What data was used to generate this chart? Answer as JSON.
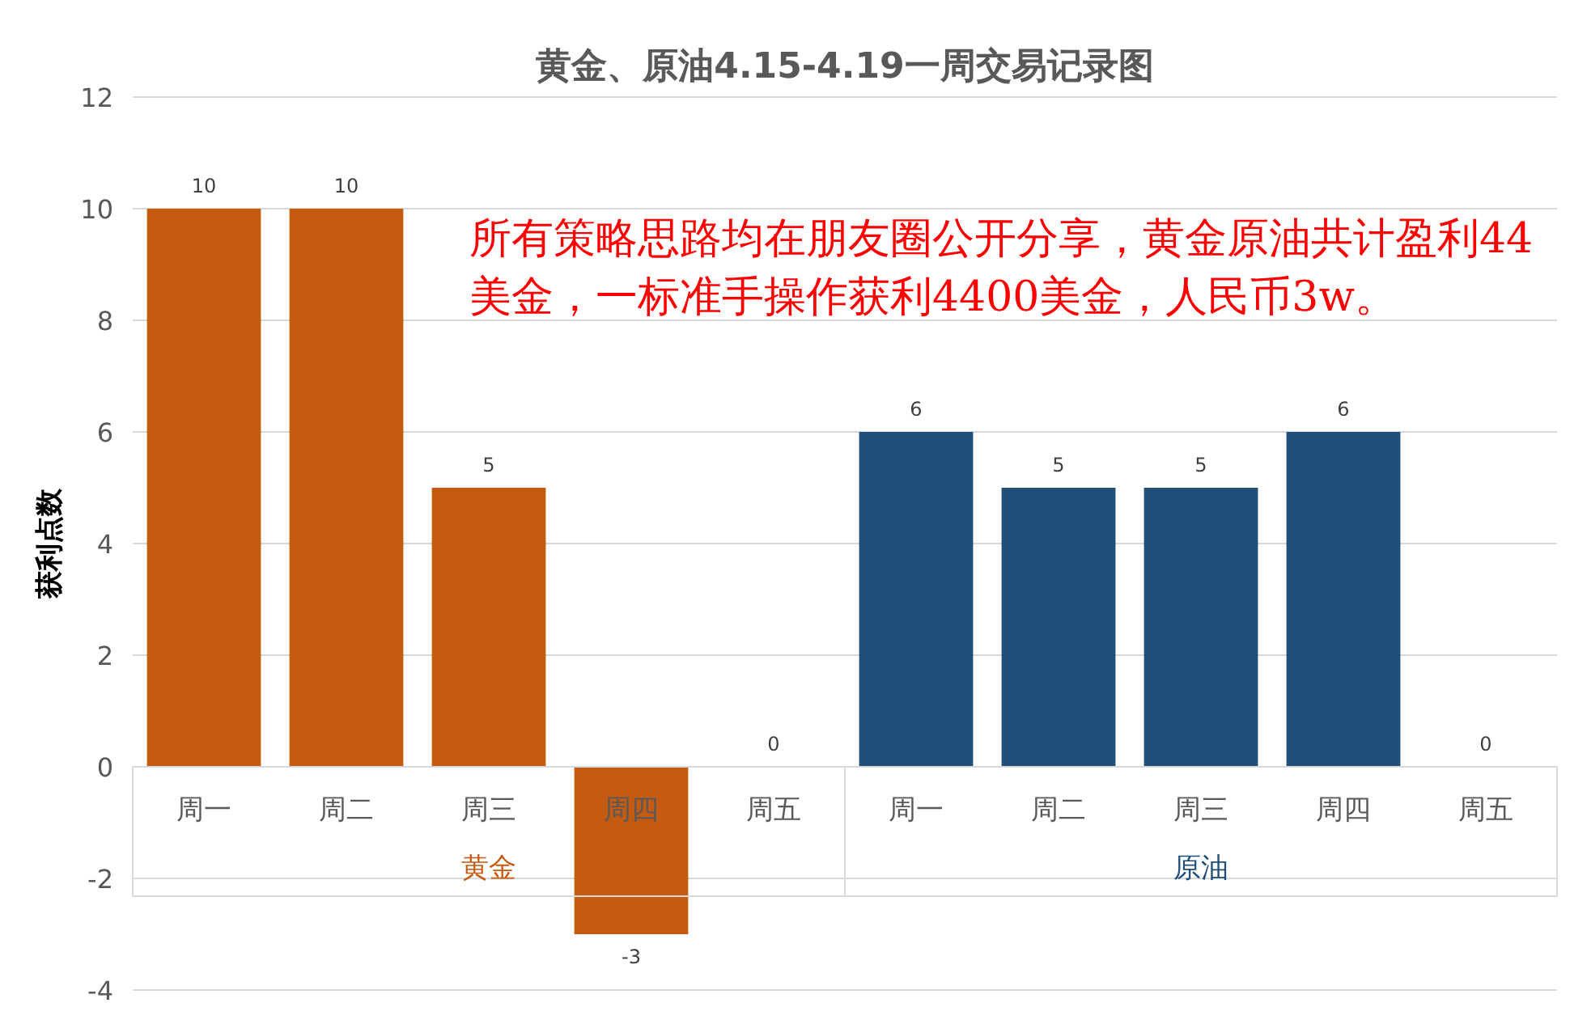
{
  "chart_data": {
    "type": "bar",
    "title": "黄金、原油4.15-4.19一周交易记录图",
    "ylabel": "获利点数",
    "categories": [
      "周一",
      "周二",
      "周三",
      "周四",
      "周五",
      "周一",
      "周二",
      "周三",
      "周四",
      "周五"
    ],
    "series": [
      {
        "name": "黄金",
        "color": "#c55a11",
        "values": [
          10,
          10,
          5,
          -3,
          0,
          null,
          null,
          null,
          null,
          null
        ]
      },
      {
        "name": "原油",
        "color": "#1f4e79",
        "values": [
          null,
          null,
          null,
          null,
          null,
          6,
          5,
          5,
          6,
          0
        ]
      }
    ],
    "ylim": [
      -4,
      12
    ],
    "yticks": [
      -4,
      -2,
      0,
      2,
      4,
      6,
      8,
      10,
      12
    ],
    "grid": "y",
    "data_labels": true,
    "annotations": [
      "所有策略思路均在朋友圈公开分享，黄金原油共计盈利44美金，一标准手操作获利4400美金，人民币3w。"
    ]
  }
}
